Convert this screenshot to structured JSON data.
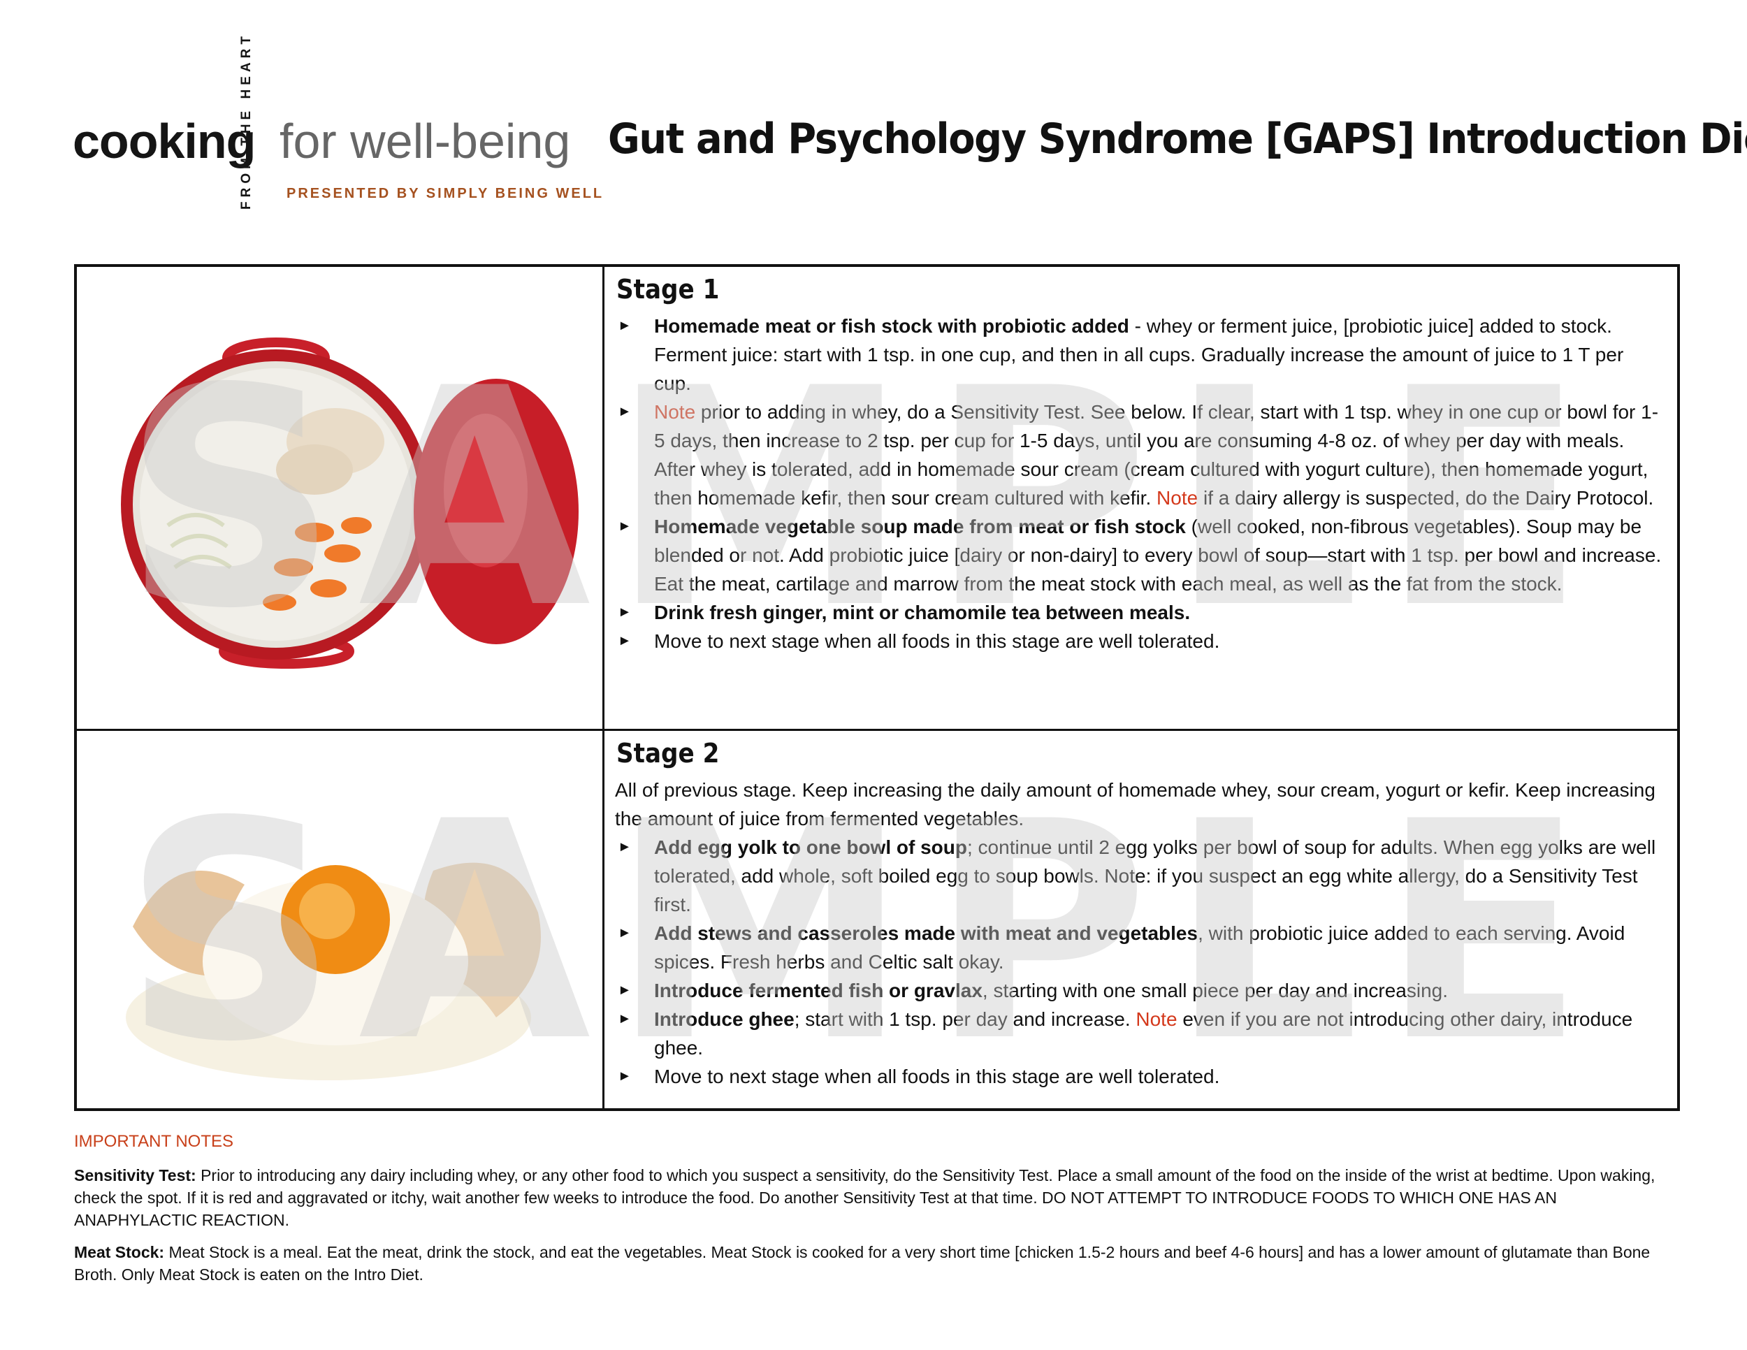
{
  "header": {
    "logo_cooking": "cooking",
    "logo_side": "FROM THE HEART",
    "logo_wellbeing": "for well-being",
    "logo_presented": "PRESENTED BY SIMPLY BEING WELL",
    "title": "Gut and Psychology Syndrome [GAPS] Introduction Diet"
  },
  "watermark": "SAMPLE",
  "stage1": {
    "heading": "Stage 1",
    "items": [
      {
        "bold": "Homemade meat or fish stock with probiotic added",
        "text": " - whey or ferment juice, [probiotic juice] added to stock. Ferment juice: start with 1 tsp. in one cup, and then in all cups. Gradually increase the amount of juice to 1 T per cup."
      },
      {
        "note": "Note",
        "text": " prior to adding in whey, do a Sensitivity Test. See below.  If clear, start with 1 tsp. whey in one cup or bowl for 1-5 days, then increase to 2 tsp. per cup for 1-5 days, until you are consuming 4-8 oz. of whey per day with meals. After whey is tolerated, add in homemade sour cream (cream cultured with yogurt culture), then homemade yogurt, then homemade kefir, then sour cream cultured with kefir. ",
        "note2": "Note",
        "text2": " if a dairy allergy is suspected, do the Dairy Protocol."
      },
      {
        "bold": "Homemade vegetable soup made from meat or fish stock",
        "text": " (well cooked, non-fibrous vegetables). Soup may be blended or not. Add probiotic juice [dairy or non-dairy] to every bowl of soup—start with 1 tsp. per bowl and increase. Eat the meat, cartilage and marrow from the meat stock with each meal, as well as the fat from the stock."
      },
      {
        "bold": "Drink fresh ginger, mint or chamomile tea between meals.",
        "text": ""
      },
      {
        "bold": "",
        "text": "Move to next stage when all foods in this stage are well tolerated."
      }
    ]
  },
  "stage2": {
    "heading": "Stage 2",
    "intro": "All of previous stage.  Keep increasing the daily amount of homemade whey, sour cream, yogurt or kefir. Keep increasing the amount of juice from fermented vegetables.",
    "items": [
      {
        "bold": "Add egg yolk to one bowl of soup",
        "text": "; continue until 2 egg yolks per bowl of soup for adults. When egg yolks are well tolerated, add whole, soft boiled egg to soup bowls. Note: if you suspect an egg white allergy, do a Sensitivity Test first."
      },
      {
        "bold": "Add stews and casseroles made with meat and vegetables",
        "text": ", with probiotic juice added to each serving. Avoid spices. Fresh herbs and Celtic salt okay."
      },
      {
        "bold": "Introduce fermented fish or gravlax",
        "text": ", starting with one small piece per day and increasing."
      },
      {
        "bold": "Introduce ghee",
        "text": "; start with 1 tsp. per day and increase. ",
        "note": "Note",
        "text2": " even if you are not introducing other dairy, introduce ghee."
      },
      {
        "bold": "",
        "text": "Move to next stage when all foods in this stage are well tolerated."
      }
    ]
  },
  "notes": {
    "title": "IMPORTANT NOTES",
    "sensitivity_label": "Sensitivity Test:",
    "sensitivity_text": " Prior to introducing any dairy including whey, or any other food to which you suspect a sensitivity, do the Sensitivity Test. Place a small amount of the food on the inside of the wrist at bedtime. Upon waking, check the spot. If it is red and aggravated or itchy, wait another few weeks to introduce the food. Do another Sensitivity Test at that time. DO NOT ATTEMPT TO INTRODUCE FOODS TO WHICH ONE HAS AN ANAPHYLACTIC REACTION.",
    "meatstock_label": "Meat Stock:",
    "meatstock_text": " Meat Stock is a meal. Eat the meat, drink the stock, and eat the vegetables. Meat Stock is cooked for a very short time [chicken 1.5-2 hours and beef 4-6 hours] and has a lower amount of glutamate than Bone Broth. Only Meat Stock is eaten on the Intro Diet."
  },
  "colors": {
    "note": "#d4391c",
    "notes_title": "#c8401a",
    "presented": "#a5511f",
    "pot_red": "#c8202a",
    "yolk": "#f5a623"
  },
  "icons": {
    "bullet": "right-triangle-bullet"
  }
}
